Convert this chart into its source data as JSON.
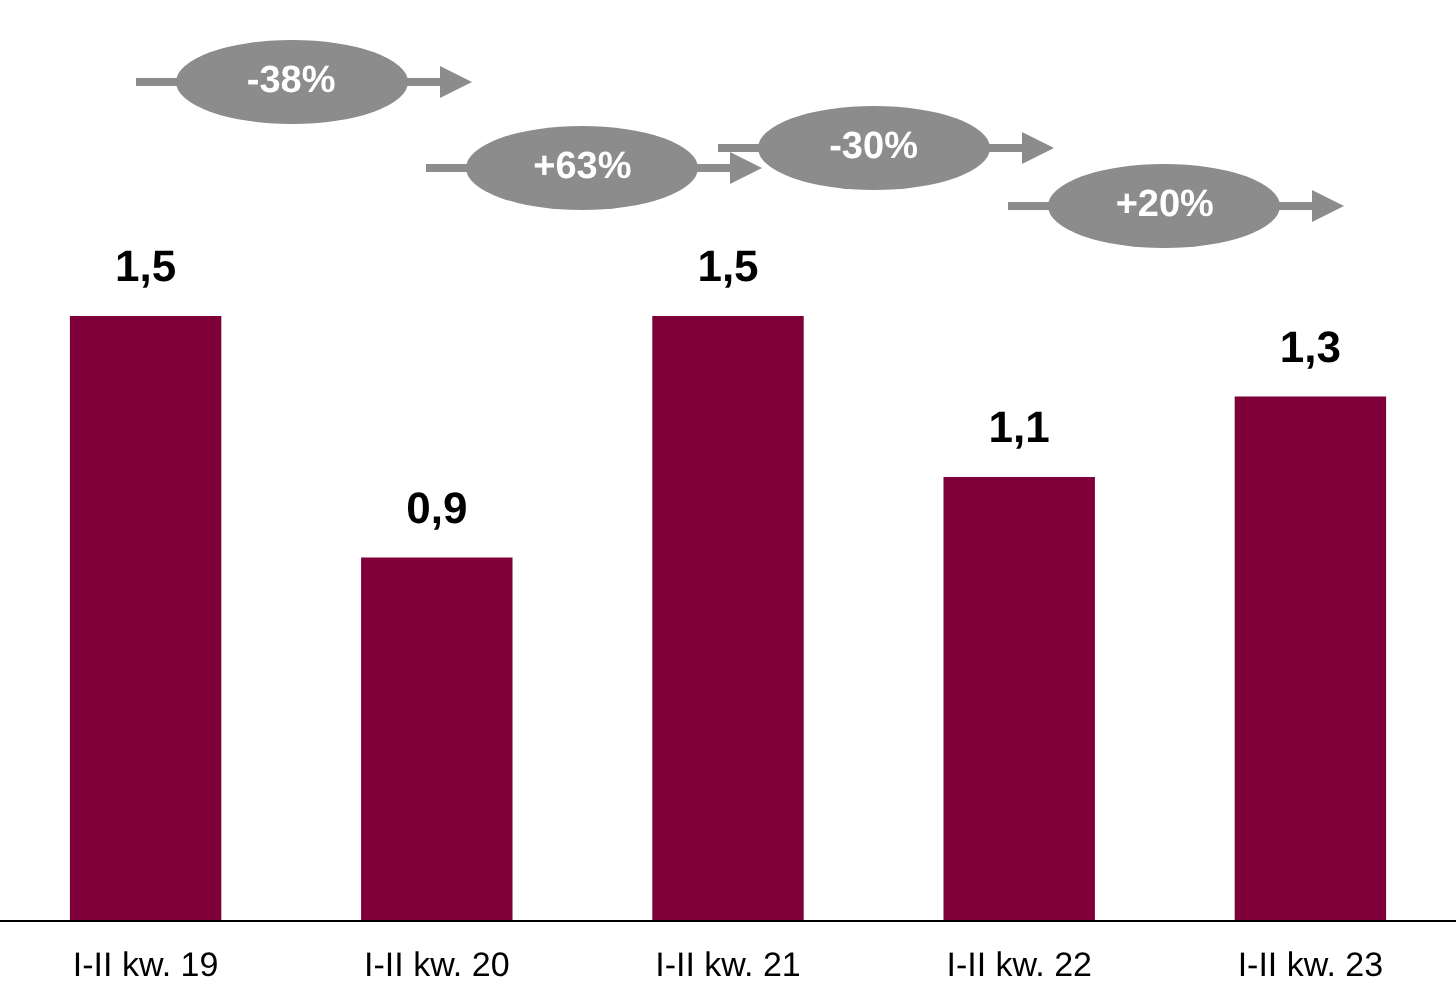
{
  "chart_data": {
    "type": "bar",
    "categories": [
      "I-II kw. 19",
      "I-II kw. 20",
      "I-II kw. 21",
      "I-II kw. 22",
      "I-II kw. 23"
    ],
    "values": [
      1.5,
      0.9,
      1.5,
      1.1,
      1.3
    ],
    "value_labels": [
      "1,5",
      "0,9",
      "1,5",
      "1,1",
      "1,3"
    ],
    "color": "#7f0039",
    "annotations": [
      "-38%",
      "+63%",
      "-30%",
      "+20%"
    ]
  }
}
